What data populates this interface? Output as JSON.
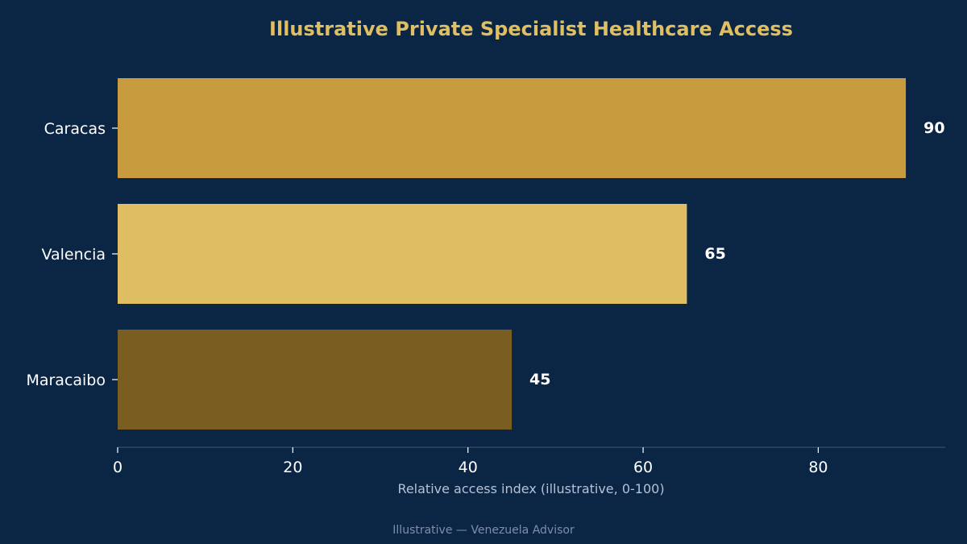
{
  "colors": {
    "background": "#0b2545",
    "title": "#e0be62",
    "axis": "#2c4766",
    "tick_text": "#ffffff",
    "axis_label": "#b5c2d6",
    "footer": "#7f8fa8",
    "value_label": "#ffffff"
  },
  "chart_data": {
    "type": "bar",
    "orientation": "horizontal",
    "title": "Illustrative Private Specialist Healthcare Access",
    "categories": [
      "Caracas",
      "Valencia",
      "Maracaibo"
    ],
    "values": [
      90,
      65,
      45
    ],
    "bar_colors": [
      "#c89c3e",
      "#dfbe63",
      "#7a5d20"
    ],
    "data_labels": [
      "90",
      "65",
      "45"
    ],
    "xlabel": "Relative access index (illustrative, 0-100)",
    "ylabel": "",
    "xlim": [
      0,
      94.5
    ],
    "xticks": [
      0,
      20,
      40,
      60,
      80
    ],
    "xtick_labels": [
      "0",
      "20",
      "40",
      "60",
      "80"
    ],
    "grid": false,
    "legend": "none"
  },
  "footer": {
    "text": "Illustrative — Venezuela Advisor"
  }
}
